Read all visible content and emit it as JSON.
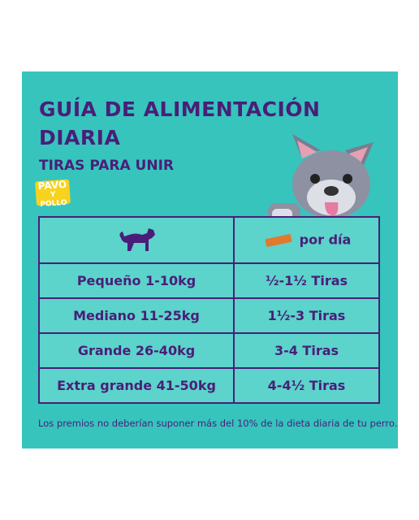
{
  "header": {
    "title_lines": [
      "GUÍA DE ALIMENTACIÓN",
      "DIARIA"
    ],
    "subtitle": "TIRAS PARA UNIR",
    "tag": [
      "PAVO",
      "Y POLLO"
    ]
  },
  "table": {
    "header": [
      "por día"
    ],
    "rows": [
      [
        "Pequeño 1-10kg",
        "½-1½ Tiras"
      ],
      [
        "Mediano 11-25kg",
        "1½-3 Tiras"
      ],
      [
        "Grande 26-40kg",
        "3-4 Tiras"
      ],
      [
        "Extra grande 41-50kg",
        "4-4½ Tiras"
      ]
    ]
  },
  "footer": "Los premios no deberían suponer más del 10% de la dieta diaria de tu perro."
}
